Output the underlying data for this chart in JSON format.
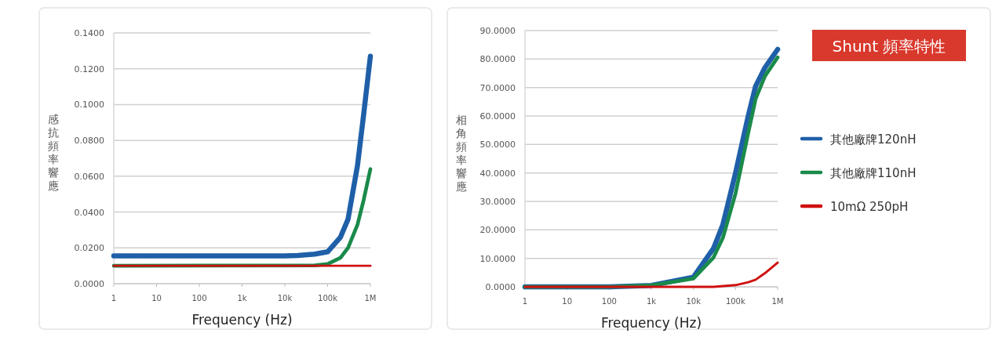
{
  "chart_data": [
    {
      "type": "line",
      "xlabel": "Frequency (Hz)",
      "ylabel": "感抗頻率響應",
      "log": "x",
      "grid": "y",
      "legend": false,
      "marker": "none",
      "line_style": "solid",
      "xlim": [
        1,
        1000000
      ],
      "xticks": [
        1,
        10,
        100,
        {
          "value": 1000,
          "label": "1k"
        },
        {
          "value": 10000,
          "label": "10k"
        },
        {
          "value": 100000,
          "label": "100k"
        },
        {
          "value": 1000000,
          "label": "1M"
        }
      ],
      "ylim": [
        0,
        0.14
      ],
      "yticks": [
        {
          "value": 0,
          "label": "0.0000"
        },
        {
          "value": 0.02,
          "label": "0.0200"
        },
        {
          "value": 0.04,
          "label": "0.0400"
        },
        {
          "value": 0.06,
          "label": "0.0600"
        },
        {
          "value": 0.08,
          "label": "0.0800"
        },
        {
          "value": 0.1,
          "label": "0.1000"
        },
        {
          "value": 0.12,
          "label": "0.1200"
        },
        {
          "value": 0.14,
          "label": "0.1400"
        }
      ],
      "series": [
        {
          "color": "#1f5fa8",
          "x": [
            1,
            10000,
            20000,
            50000,
            100000,
            200000,
            300000,
            500000,
            700000,
            1000000
          ],
          "values": [
            0.0155,
            0.0155,
            0.0158,
            0.0165,
            0.0178,
            0.026,
            0.036,
            0.066,
            0.095,
            0.127
          ]
        },
        {
          "color": "#1a8a4a",
          "x": [
            1,
            50000,
            100000,
            200000,
            300000,
            500000,
            700000,
            1000000
          ],
          "values": [
            0.01,
            0.0102,
            0.011,
            0.0145,
            0.02,
            0.033,
            0.047,
            0.064
          ]
        },
        {
          "color": "#d01010",
          "x": [
            1,
            1000000
          ],
          "values": [
            0.01,
            0.01
          ]
        }
      ]
    },
    {
      "type": "line",
      "annotations": [
        "Shunt 頻率特性"
      ],
      "xlabel": "Frequency (Hz)",
      "ylabel": "相角頻率響應",
      "log": "x",
      "grid": "y",
      "legend": "right",
      "marker": "none",
      "line_style": "solid",
      "xlim": [
        1,
        1000000
      ],
      "xticks": [
        1,
        10,
        100,
        {
          "value": 1000,
          "label": "1k"
        },
        {
          "value": 10000,
          "label": "10k"
        },
        {
          "value": 100000,
          "label": "100k"
        },
        {
          "value": 1000000,
          "label": "1M"
        }
      ],
      "ylim": [
        0,
        90
      ],
      "yticks": [
        {
          "value": 0,
          "label": "0.0000"
        },
        {
          "value": 10,
          "label": "10.0000"
        },
        {
          "value": 20,
          "label": "20.0000"
        },
        {
          "value": 30,
          "label": "30.0000"
        },
        {
          "value": 40,
          "label": "40.0000"
        },
        {
          "value": 50,
          "label": "50.0000"
        },
        {
          "value": 60,
          "label": "60.0000"
        },
        {
          "value": 70,
          "label": "70.0000"
        },
        {
          "value": 80,
          "label": "80.0000"
        },
        {
          "value": 90,
          "label": "90.0000"
        }
      ],
      "series": [
        {
          "name": "其他廠牌120nH",
          "color": "#1f5fa8",
          "x": [
            1,
            100,
            1000,
            10000,
            30000,
            50000,
            100000,
            200000,
            300000,
            500000,
            1000000
          ],
          "values": [
            0,
            0,
            0.5,
            3.4,
            13.5,
            21.8,
            40,
            60,
            70.5,
            77,
            83.4
          ]
        },
        {
          "name": "其他廠牌110nH",
          "color": "#1a8a4a",
          "x": [
            1,
            100,
            1000,
            10000,
            30000,
            50000,
            100000,
            200000,
            300000,
            500000,
            1000000
          ],
          "values": [
            0,
            0,
            0.5,
            2.9,
            10.3,
            17.2,
            32.8,
            54,
            66,
            74,
            80.6
          ]
        },
        {
          "name": "10mΩ 250pH",
          "color": "#d01010",
          "x": [
            1,
            30000,
            100000,
            200000,
            300000,
            500000,
            1000000
          ],
          "values": [
            0,
            0,
            0.6,
            1.6,
            2.5,
            4.8,
            8.5
          ]
        }
      ]
    }
  ]
}
